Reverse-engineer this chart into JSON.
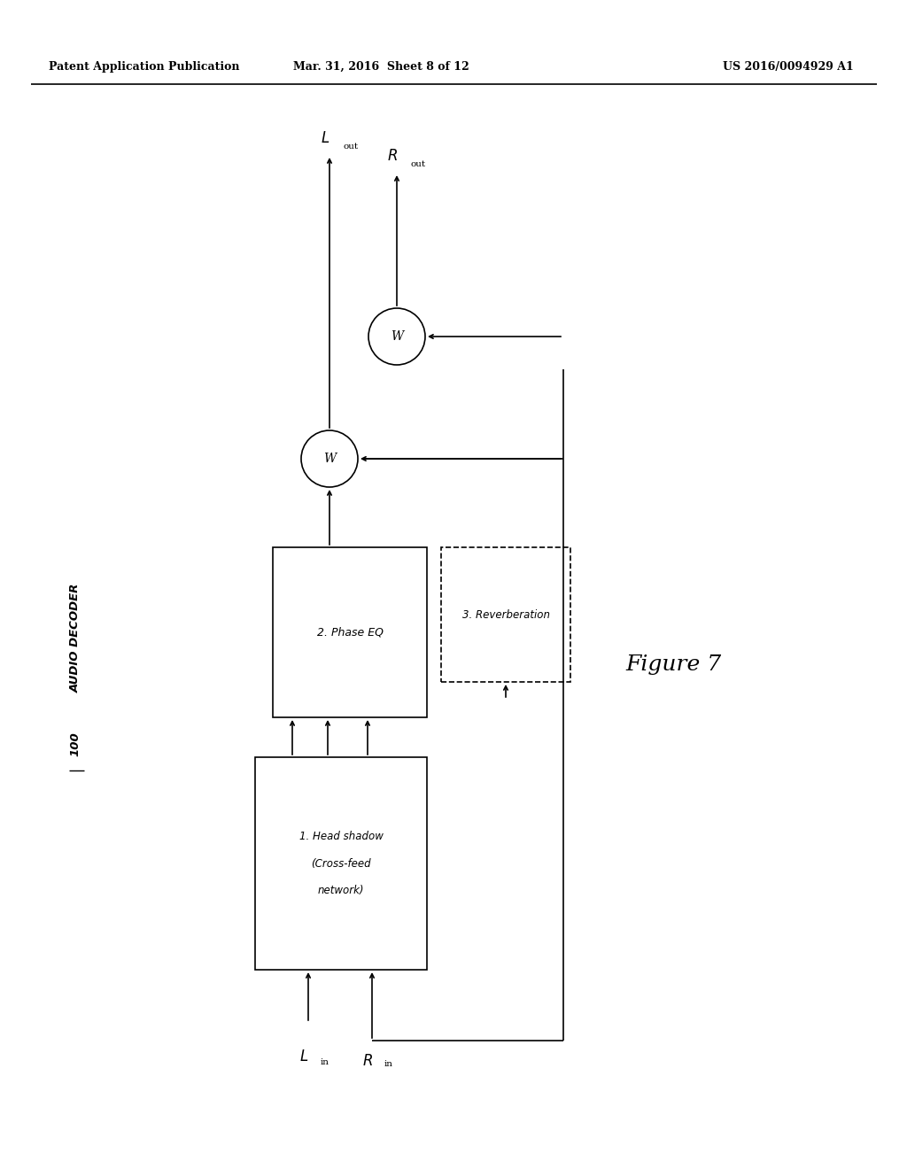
{
  "bg_color": "#ffffff",
  "line_color": "#000000",
  "header_left": "Patent Application Publication",
  "header_mid": "Mar. 31, 2016  Sheet 8 of 12",
  "header_right": "US 2016/0094929 A1",
  "decoder_label": "AUDIO DECODER",
  "decoder_num": "100",
  "figure_label": "Figure 7",
  "box1_line1": "1. Head shadow",
  "box1_line2": "(Cross-feed",
  "box1_line3": "network)",
  "box2_label": "2. Phase EQ",
  "box3_label": "3. Reverberation",
  "lw": 1.2,
  "arrow_ms": 8
}
